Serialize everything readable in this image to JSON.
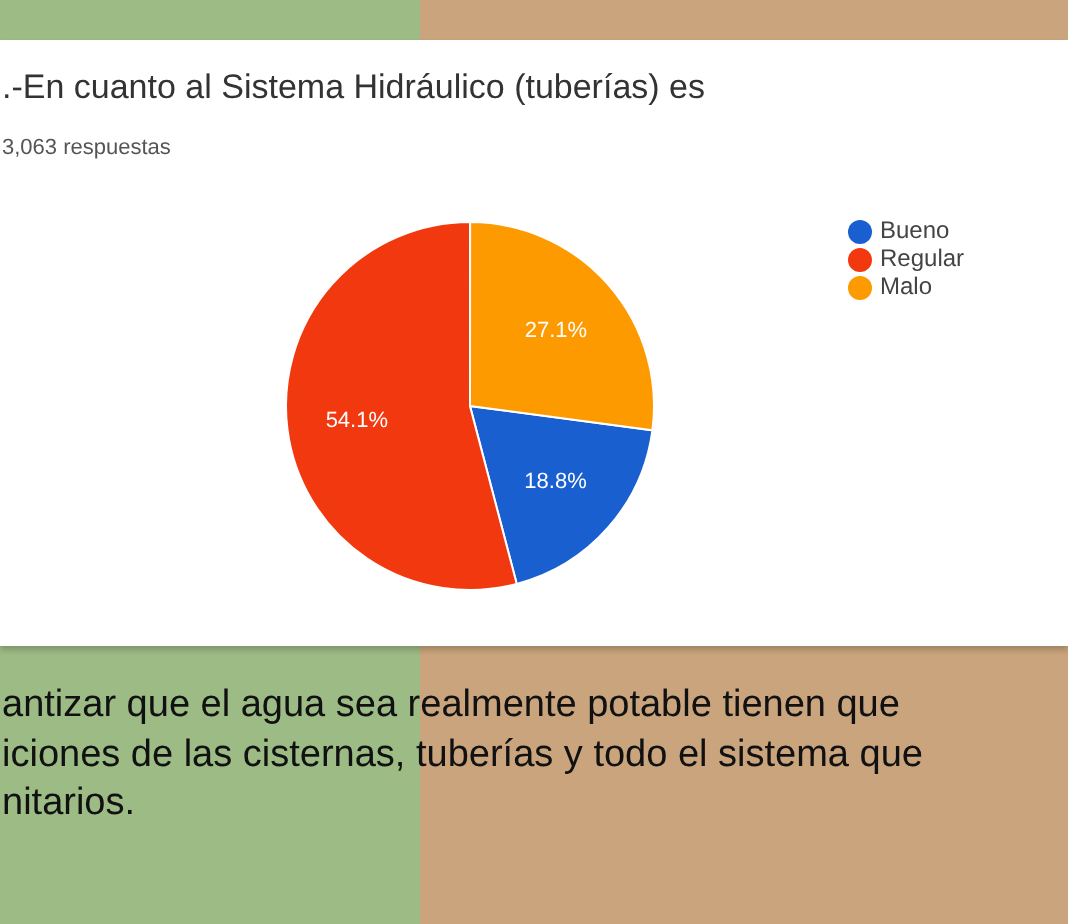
{
  "chart_data": {
    "type": "pie",
    "title": ".-En cuanto al Sistema Hidráulico (tuberías) es",
    "subtitle": "3,063 respuestas",
    "categories": [
      "Bueno",
      "Regular",
      "Malo"
    ],
    "values": [
      18.8,
      54.1,
      27.1
    ],
    "colors": [
      "#1a5fcf",
      "#f2380e",
      "#fd9a00"
    ],
    "value_labels": [
      "18.8%",
      "54.1%",
      "27.1%"
    ],
    "legend": "right",
    "annotations": [
      "antizar que el agua sea realmente potable tienen que",
      "iciones de las cisternas, tuberías y todo el sistema que",
      "nitarios."
    ]
  }
}
